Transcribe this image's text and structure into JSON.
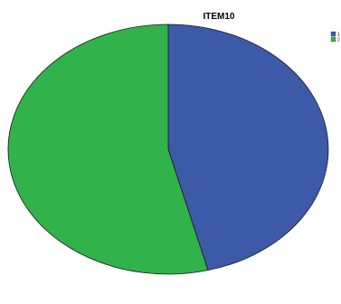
{
  "chart_data": {
    "type": "pie",
    "title": "ITEM10",
    "slices": [
      {
        "label": "1",
        "value": 46,
        "color": "#3d5aa9"
      },
      {
        "label": "2",
        "value": 54,
        "color": "#31b24a"
      }
    ],
    "legend_position": "top-right"
  }
}
